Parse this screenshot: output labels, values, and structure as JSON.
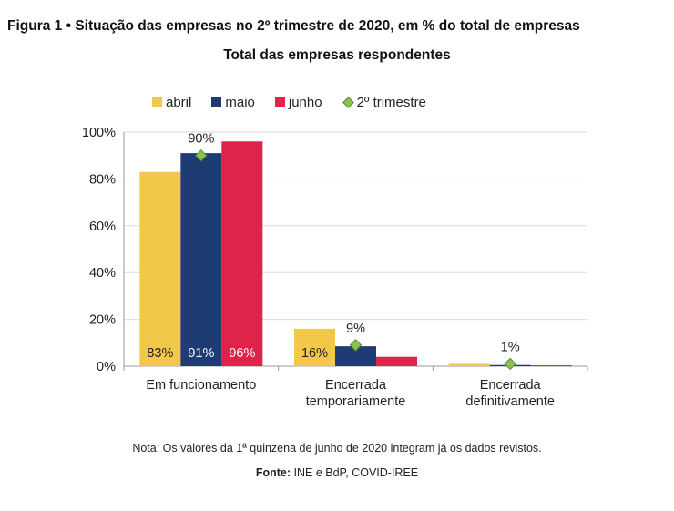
{
  "figure": {
    "title": "Figura 1 • Situação das empresas no 2º trimestre de 2020, em % do total de empresas",
    "subtitle": "Total das empresas respondentes",
    "note": "Nota: Os valores da 1ª quinzena de junho de 2020 integram já os dados revistos.",
    "source_label": "Fonte:",
    "source_text": "INE e BdP, COVID-IREE"
  },
  "chart_data": {
    "type": "bar",
    "categories": [
      [
        "Em funcionamento"
      ],
      [
        "Encerrada",
        "temporariamente"
      ],
      [
        "Encerrada",
        "definitivamente"
      ]
    ],
    "series": [
      {
        "name": "abril",
        "color": "#f2c84b",
        "values": [
          83,
          16,
          1
        ],
        "labels": [
          "83%",
          "16%",
          ""
        ]
      },
      {
        "name": "maio",
        "color": "#1f3b73",
        "values": [
          91,
          8.5,
          0.5
        ],
        "labels": [
          "91%",
          "",
          ""
        ]
      },
      {
        "name": "junho",
        "color": "#e0234a",
        "values": [
          96,
          4,
          0.4
        ],
        "labels": [
          "96%",
          "",
          ""
        ]
      }
    ],
    "marker_series": {
      "name": "2º trimestre",
      "color": "#8cc152",
      "values": [
        90,
        9,
        1
      ],
      "labels": [
        "90%",
        "9%",
        "1%"
      ]
    },
    "ylim": [
      0,
      100
    ],
    "yticks": [
      0,
      20,
      40,
      60,
      80,
      100
    ],
    "ytick_labels": [
      "0%",
      "20%",
      "40%",
      "60%",
      "80%",
      "100%"
    ],
    "grid": true,
    "legend": "top"
  }
}
